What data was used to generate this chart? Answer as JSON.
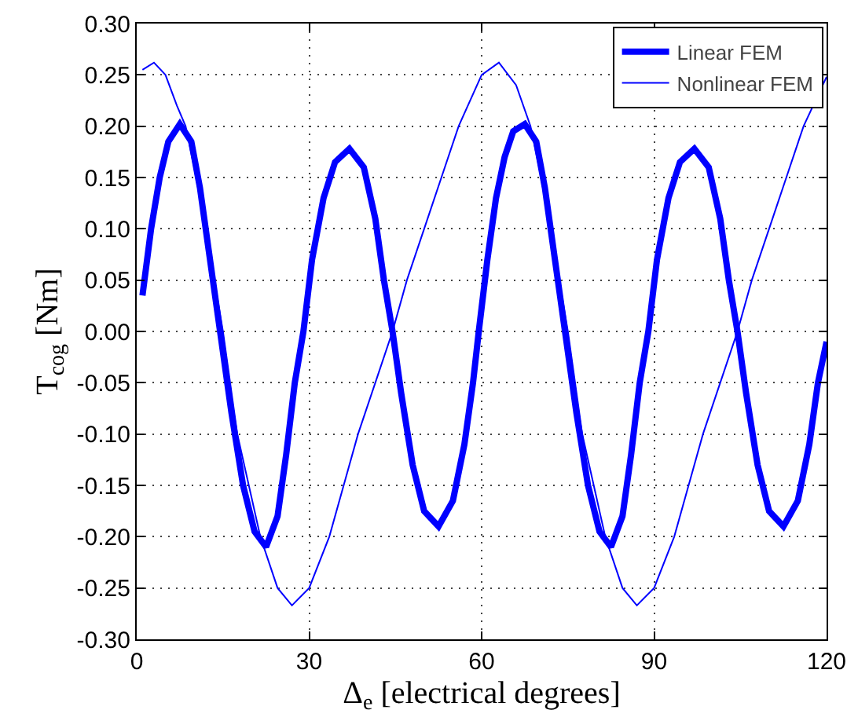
{
  "chart_data": {
    "type": "line",
    "xlabel": "Δ$_{e}$ [electrical degrees]",
    "ylabel": "T$_{cog}$ [Nm]",
    "xlim": [
      0,
      120
    ],
    "xticks": [
      0,
      30,
      60,
      90,
      120
    ],
    "ylim": [
      -0.3,
      0.3
    ],
    "yticks": [
      {
        "value": -0.3,
        "label": "-0.30"
      },
      {
        "value": -0.25,
        "label": "-0.25"
      },
      {
        "value": -0.2,
        "label": "-0.20"
      },
      {
        "value": -0.15,
        "label": "-0.15"
      },
      {
        "value": -0.1,
        "label": "-0.10"
      },
      {
        "value": -0.05,
        "label": "-0.05"
      },
      {
        "value": 0,
        "label": "0.00"
      },
      {
        "value": 0.05,
        "label": "0.05"
      },
      {
        "value": 0.1,
        "label": "0.10"
      },
      {
        "value": 0.15,
        "label": "0.15"
      },
      {
        "value": 0.2,
        "label": "0.20"
      },
      {
        "value": 0.25,
        "label": "0.25"
      },
      {
        "value": 0.3,
        "label": "0.30"
      }
    ],
    "grid": true,
    "legend": "top right",
    "marker": "none",
    "line_style": "solid",
    "series": [
      {
        "name": "Linear FEM",
        "color": "#0000ff",
        "x": [
          1,
          2.5,
          4,
          5.5,
          7.5,
          9.5,
          11,
          12.5,
          14.5,
          16.5,
          18.5,
          20.5,
          22.5,
          24.5,
          26,
          27.5,
          29,
          30.5,
          32.5,
          34.5,
          37,
          39.5,
          41.5,
          43,
          44.5,
          46,
          48,
          50,
          52.5,
          55,
          57,
          58.5,
          59.5,
          61,
          62.5,
          64,
          65.5,
          67.5,
          69.5,
          71,
          72.5,
          74.5,
          76.5,
          78.5,
          80.5,
          82.5,
          84.5,
          86,
          87.5,
          89,
          90.5,
          92.5,
          94.5,
          97,
          99.5,
          101.5,
          103,
          104.5,
          106,
          108,
          110,
          112.5,
          115,
          117,
          118.5,
          120
        ],
        "values": [
          0.035,
          0.1,
          0.15,
          0.185,
          0.202,
          0.185,
          0.14,
          0.08,
          0,
          -0.08,
          -0.15,
          -0.195,
          -0.21,
          -0.18,
          -0.12,
          -0.05,
          0,
          0.07,
          0.13,
          0.165,
          0.178,
          0.16,
          0.11,
          0.05,
          0,
          -0.06,
          -0.13,
          -0.175,
          -0.19,
          -0.165,
          -0.11,
          -0.05,
          0,
          0.07,
          0.13,
          0.17,
          0.195,
          0.202,
          0.185,
          0.14,
          0.08,
          0,
          -0.08,
          -0.15,
          -0.195,
          -0.21,
          -0.18,
          -0.12,
          -0.05,
          0,
          0.07,
          0.13,
          0.165,
          0.178,
          0.16,
          0.11,
          0.05,
          0,
          -0.06,
          -0.13,
          -0.175,
          -0.19,
          -0.165,
          -0.11,
          -0.05,
          -0.01
        ]
      },
      {
        "name": "Nonlinear FEM",
        "color": "#0000ff",
        "x": [
          1,
          3,
          5,
          7,
          8.5,
          10,
          12,
          13.5,
          15,
          17.5,
          19.5,
          21.5,
          24.5,
          27,
          30,
          33.5,
          36,
          38.5,
          41.5,
          44.5,
          47,
          50,
          53,
          56,
          60,
          63,
          66,
          68.5,
          70,
          72,
          73.5,
          75,
          77.5,
          79.5,
          81.5,
          84.5,
          87,
          90,
          93.5,
          96,
          98.5,
          101.5,
          104.5,
          107,
          110,
          113,
          116,
          120
        ],
        "values": [
          0.255,
          0.262,
          0.25,
          0.22,
          0.2,
          0.16,
          0.1,
          0.05,
          0,
          -0.1,
          -0.15,
          -0.2,
          -0.25,
          -0.267,
          -0.25,
          -0.2,
          -0.15,
          -0.1,
          -0.05,
          0,
          0.05,
          0.1,
          0.15,
          0.2,
          0.25,
          0.262,
          0.24,
          0.2,
          0.16,
          0.1,
          0.05,
          0,
          -0.1,
          -0.15,
          -0.2,
          -0.25,
          -0.267,
          -0.25,
          -0.2,
          -0.15,
          -0.1,
          -0.05,
          0,
          0.05,
          0.1,
          0.15,
          0.2,
          0.248
        ]
      }
    ]
  }
}
